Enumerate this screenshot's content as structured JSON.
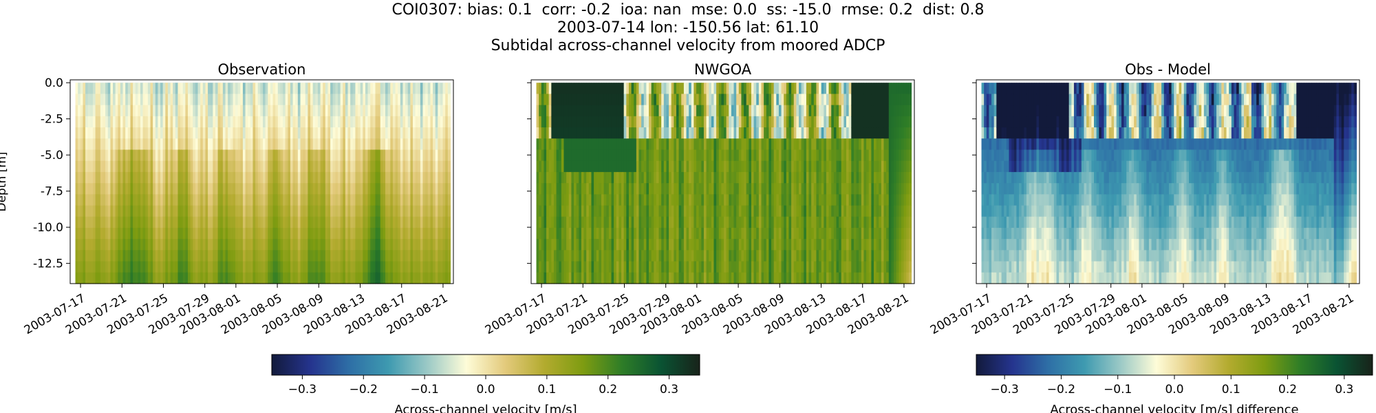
{
  "figure": {
    "title_line1": "COI0307: bias: 0.1  corr: -0.2  ioa: nan  mse: 0.0  ss: -15.0  rmse: 0.2  dist: 0.8",
    "title_line2": "2003-07-14 lon: -150.56 lat: 61.10",
    "title_line3": "Subtidal across-channel velocity from moored ADCP"
  },
  "chart_data": [
    {
      "type": "heatmap",
      "title": "Observation",
      "ylabel": "Depth [m]",
      "y_ticks": [
        "0.0",
        "-2.5",
        "-5.0",
        "-7.5",
        "-10.0",
        "-12.5"
      ],
      "y_tick_values": [
        0.0,
        -2.5,
        -5.0,
        -7.5,
        -10.0,
        -12.5
      ],
      "ylim": [
        -13.9,
        0.2
      ],
      "x_ticks": [
        "2003-07-17",
        "2003-07-21",
        "2003-07-25",
        "2003-07-29",
        "2003-08-01",
        "2003-08-05",
        "2003-08-09",
        "2003-08-13",
        "2003-08-17",
        "2003-08-21"
      ],
      "xlim": [
        "2003-07-16",
        "2003-08-22"
      ],
      "colormap": "delta",
      "clim": [
        -0.35,
        0.35
      ],
      "pattern": "obs",
      "value_range_estimate": [
        -0.15,
        0.2
      ]
    },
    {
      "type": "heatmap",
      "title": "NWGOA",
      "x_ticks": [
        "2003-07-17",
        "2003-07-21",
        "2003-07-25",
        "2003-07-29",
        "2003-08-01",
        "2003-08-05",
        "2003-08-09",
        "2003-08-13",
        "2003-08-17",
        "2003-08-21"
      ],
      "xlim": [
        "2003-07-16",
        "2003-08-22"
      ],
      "ylim": [
        -13.9,
        0.2
      ],
      "colormap": "delta",
      "clim": [
        -0.35,
        0.35
      ],
      "pattern": "model",
      "value_range_estimate": [
        -0.2,
        0.35
      ]
    },
    {
      "type": "heatmap",
      "title": "Obs - Model",
      "x_ticks": [
        "2003-07-17",
        "2003-07-21",
        "2003-07-25",
        "2003-07-29",
        "2003-08-01",
        "2003-08-05",
        "2003-08-09",
        "2003-08-13",
        "2003-08-17",
        "2003-08-21"
      ],
      "xlim": [
        "2003-07-16",
        "2003-08-22"
      ],
      "ylim": [
        -13.9,
        0.2
      ],
      "colormap": "delta",
      "clim": [
        -0.35,
        0.35
      ],
      "pattern": "diff",
      "value_range_estimate": [
        -0.35,
        0.3
      ]
    }
  ],
  "colorbars": [
    {
      "label": "Across-channel velocity [m/s]",
      "ticks": [
        "−0.3",
        "−0.2",
        "−0.1",
        "0.0",
        "0.1",
        "0.2",
        "0.3"
      ],
      "tick_values": [
        -0.3,
        -0.2,
        -0.1,
        0.0,
        0.1,
        0.2,
        0.3
      ],
      "range": [
        -0.35,
        0.35
      ]
    },
    {
      "label": "Across-channel velocity [m/s] difference",
      "ticks": [
        "−0.3",
        "−0.2",
        "−0.1",
        "0.0",
        "0.1",
        "0.2",
        "0.3"
      ],
      "tick_values": [
        -0.3,
        -0.2,
        -0.1,
        0.0,
        0.1,
        0.2,
        0.3
      ],
      "range": [
        -0.35,
        0.35
      ]
    }
  ],
  "colormap_stops": [
    "#121a3b",
    "#25348e",
    "#2e6fa6",
    "#3e9ab0",
    "#9bc9c6",
    "#fefcd8",
    "#e3ca7c",
    "#b3ab2f",
    "#7e9c11",
    "#2e7d27",
    "#0a5333",
    "#18231a"
  ]
}
